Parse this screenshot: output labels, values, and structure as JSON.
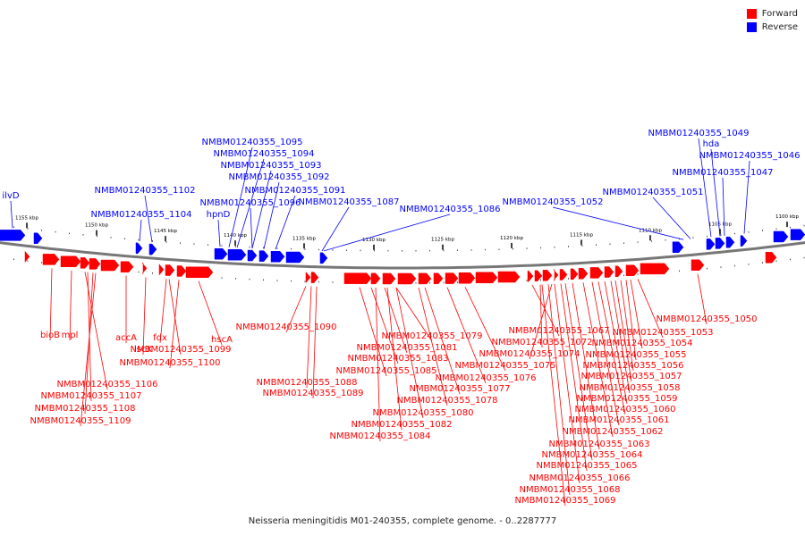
{
  "caption": "Neisseria meningitidis M01-240355, complete genome. - 0..2287777",
  "legend": [
    {
      "label": "Forward",
      "color": "#ff0000"
    },
    {
      "label": "Reverse",
      "color": "#0000ff"
    }
  ],
  "colors": {
    "forward": "#ff0000",
    "reverse": "#0000ff",
    "backbone": "#777777"
  },
  "ticks": [
    "1155 kbp",
    "1150 kbp",
    "1145 kbp",
    "1140 kbp",
    "1135 kbp",
    "1130 kbp",
    "1125 kbp",
    "1120 kbp",
    "1115 kbp",
    "1110 kbp",
    "1105 kbp",
    "1100 kbp"
  ],
  "reverse_labels": [
    "ilvD",
    "NMBM01240355_1104",
    "NMBM01240355_1102",
    "hpnD",
    "NMBM01240355_1096",
    "NMBM01240355_1095",
    "NMBM01240355_1094",
    "NMBM01240355_1093",
    "NMBM01240355_1092",
    "NMBM01240355_1091",
    "NMBM01240355_1087",
    "NMBM01240355_1086",
    "NMBM01240355_1052",
    "NMBM01240355_1051",
    "NMBM01240355_1049",
    "hda",
    "NMBM01240355_1047",
    "NMBM01240355_1046"
  ],
  "forward_labels": [
    "bioB",
    "mpl",
    "accA",
    "fdx",
    "iscX",
    "hscA",
    "NMBM01240355_1090",
    "NMBM01240355_1099",
    "NMBM01240355_1100",
    "NMBM01240355_1106",
    "NMBM01240355_1107",
    "NMBM01240355_1108",
    "NMBM01240355_1109",
    "NMBM01240355_1088",
    "NMBM01240355_1089",
    "NMBM01240355_1085",
    "NMBM01240355_1083",
    "NMBM01240355_1081",
    "NMBM01240355_1079",
    "NMBM01240355_1075",
    "NMBM01240355_1076",
    "NMBM01240355_1077",
    "NMBM01240355_1078",
    "NMBM01240355_1080",
    "NMBM01240355_1082",
    "NMBM01240355_1084",
    "NMBM01240355_1067",
    "NMBM01240355_1072",
    "NMBM01240355_1074",
    "NMBM01240355_1050",
    "NMBM01240355_1053",
    "NMBM01240355_1054",
    "NMBM01240355_1055",
    "NMBM01240355_1056",
    "NMBM01240355_1057",
    "NMBM01240355_1058",
    "NMBM01240355_1059",
    "NMBM01240355_1060",
    "NMBM01240355_1061",
    "NMBM01240355_1062",
    "NMBM01240355_1063",
    "NMBM01240355_1064",
    "NMBM01240355_1065",
    "NMBM01240355_1066",
    "NMBM01240355_1068",
    "NMBM01240355_1069"
  ]
}
